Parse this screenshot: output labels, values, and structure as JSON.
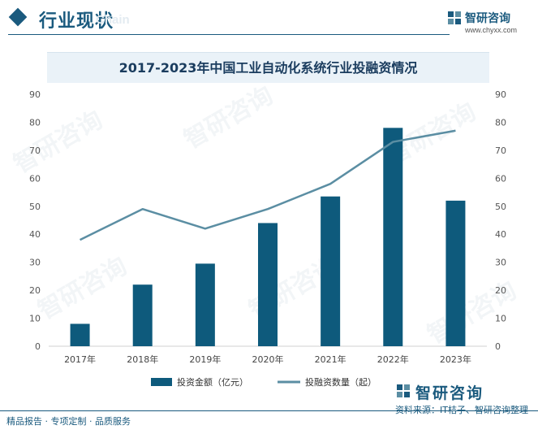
{
  "header": {
    "title": "行业现状",
    "ghost_text": "Chain"
  },
  "brand": {
    "name": "智研咨询",
    "url": "www.chyxx.com",
    "icon": "zhiyan-logo-icon"
  },
  "watermark": "智研咨询",
  "footer": {
    "left": "精品报告 · 专项定制 · 品质服务",
    "source": "资料来源：IT桔子、智研咨询整理",
    "brand_name": "智研咨询"
  },
  "colors": {
    "primary": "#1a5a7e",
    "bar": "#0e5a7c",
    "line": "#5b8ea3",
    "axis": "#d0d0d0"
  },
  "chart_data": {
    "type": "bar",
    "title": "2017-2023年中国工业自动化系统行业投融资情况",
    "categories": [
      "2017年",
      "2018年",
      "2019年",
      "2020年",
      "2021年",
      "2022年",
      "2023年"
    ],
    "ylim": [
      0,
      90
    ],
    "yticks": [
      0,
      10,
      20,
      30,
      40,
      50,
      60,
      70,
      80,
      90
    ],
    "y2lim": [
      0,
      90
    ],
    "y2ticks": [
      0,
      10,
      20,
      30,
      40,
      50,
      60,
      70,
      80,
      90
    ],
    "series": [
      {
        "name": "投资金额（亿元）",
        "type": "bar",
        "axis": "left",
        "values": [
          8,
          22,
          29.5,
          44,
          53.5,
          78,
          52
        ]
      },
      {
        "name": "投融资数量（起）",
        "type": "line",
        "axis": "right",
        "values": [
          38,
          49,
          42,
          49,
          58,
          73,
          77
        ]
      }
    ],
    "legend_position": "bottom",
    "grid": false
  }
}
